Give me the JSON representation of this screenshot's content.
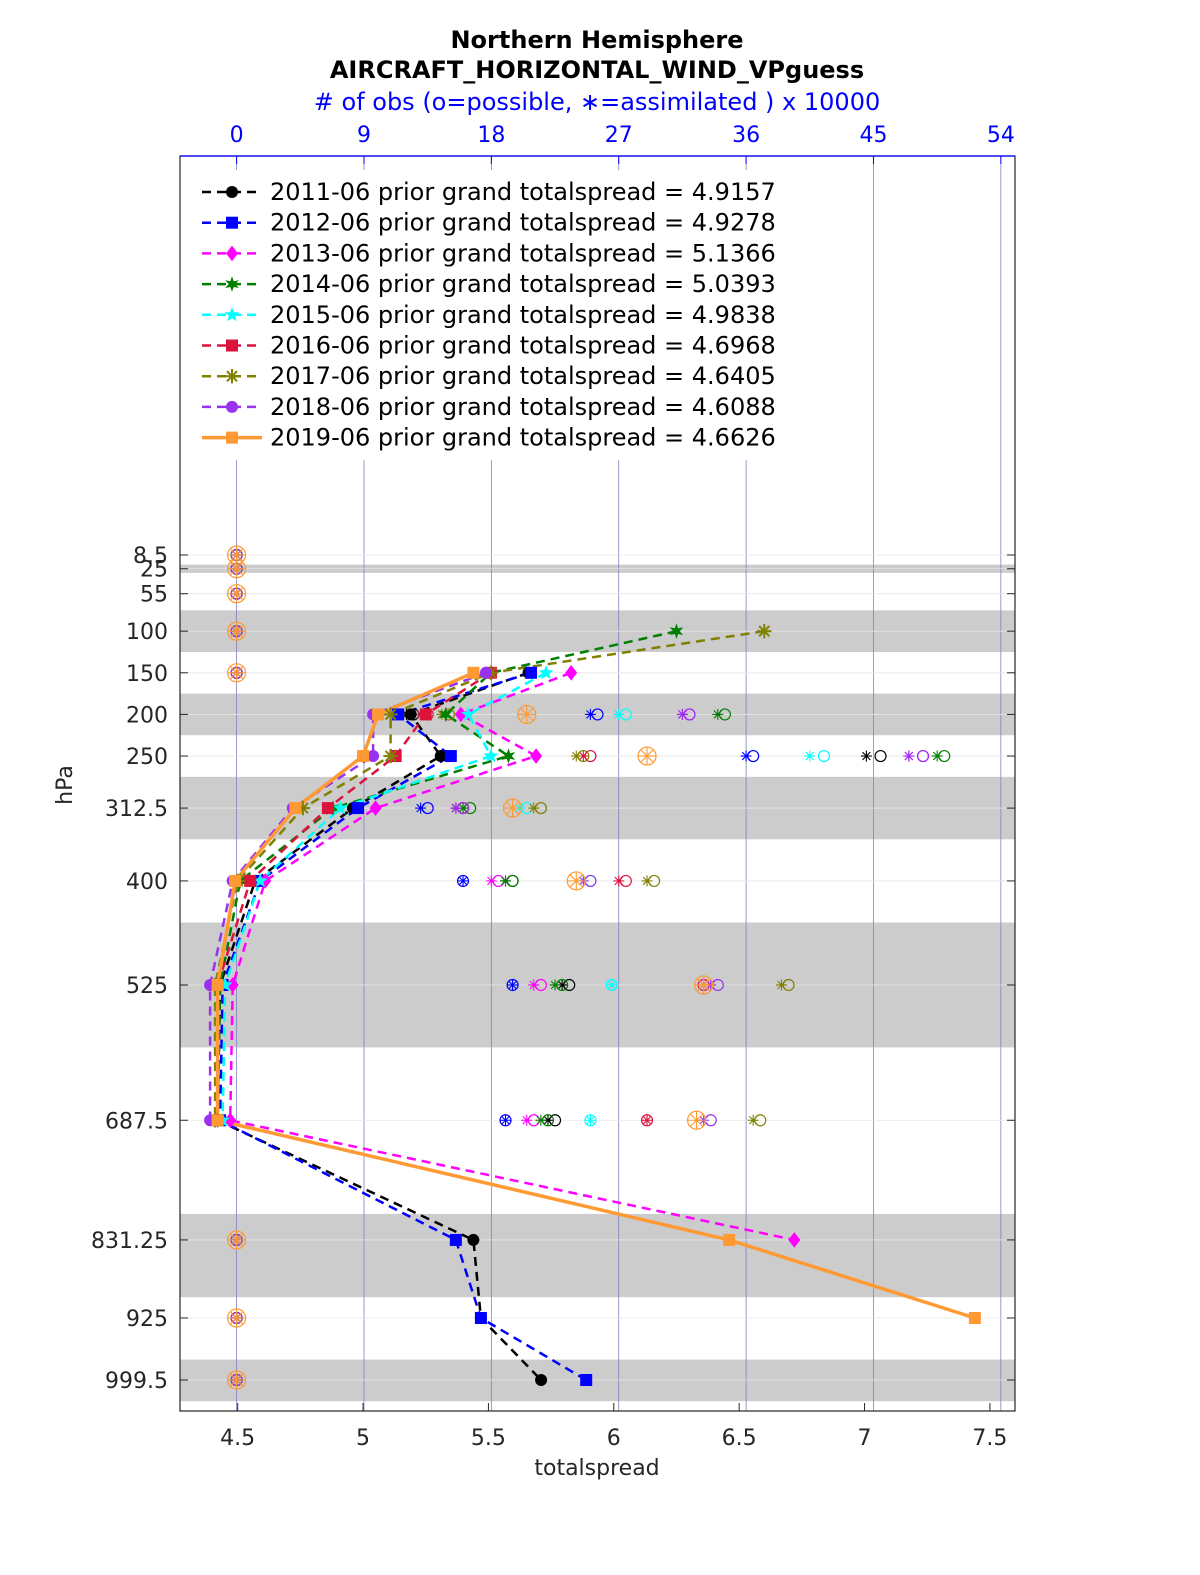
{
  "chart_data": {
    "type": "line",
    "title": "Northern Hemisphere",
    "subtitle": "AIRCRAFT_HORIZONTAL_WIND_VPguess",
    "top_axis_label": "# of obs (o=possible, ∗=assimilated ) x 10000",
    "xlabel": "totalspread",
    "ylabel": "hPa",
    "xlim": [
      4.27,
      7.6
    ],
    "x_ticks": [
      4.5,
      5,
      5.5,
      6,
      6.5,
      7,
      7.5
    ],
    "x_tick_labels": [
      "4.5",
      "5",
      "5.5",
      "6",
      "6.5",
      "7",
      "7.5"
    ],
    "top_lim": [
      -4,
      55
    ],
    "top_ticks": [
      0,
      9,
      18,
      27,
      36,
      45,
      54
    ],
    "top_tick_labels": [
      "0",
      "9",
      "18",
      "27",
      "36",
      "45",
      "54"
    ],
    "levels": [
      8.5,
      25,
      55,
      100,
      150,
      200,
      250,
      312.5,
      400,
      525,
      687.5,
      831.25,
      925,
      999.5
    ],
    "level_labels": [
      "8.5",
      "25",
      "55",
      "100",
      "150",
      "200",
      "250",
      "312.5",
      "400",
      "525",
      "687.5",
      "831.25",
      "925",
      "999.5"
    ],
    "shaded_bands": [
      [
        20,
        30
      ],
      [
        75,
        125
      ],
      [
        175,
        225
      ],
      [
        275,
        350
      ],
      [
        450,
        600
      ],
      [
        800,
        900
      ],
      [
        975,
        1025
      ]
    ],
    "series": [
      {
        "name": "2011-06",
        "legend": "2011-06 prior grand totalspread = 4.9157",
        "color": "#000000",
        "marker": "circle",
        "style": "dashed",
        "spread": [
          null,
          null,
          null,
          null,
          5.66,
          5.19,
          5.31,
          4.96,
          4.57,
          4.43,
          4.42,
          5.44,
          5.47,
          5.71
        ],
        "possible": [
          0,
          0,
          0,
          0,
          0,
          12.5,
          45.5,
          16,
          19.5,
          23.5,
          22.5,
          0,
          0,
          0
        ],
        "assimilated": [
          0,
          0,
          0,
          0,
          0,
          12,
          44.5,
          15.5,
          19,
          23,
          22,
          0,
          0,
          0
        ]
      },
      {
        "name": "2012-06",
        "legend": "2012-06 prior grand totalspread = 4.9278",
        "color": "#0000ff",
        "marker": "square",
        "style": "dashed",
        "spread": [
          null,
          null,
          null,
          null,
          5.67,
          5.14,
          5.35,
          4.98,
          4.59,
          4.44,
          4.43,
          5.37,
          5.47,
          5.89
        ],
        "possible": [
          0,
          0,
          0,
          0,
          0,
          25.5,
          36.5,
          13.5,
          16,
          19.5,
          19,
          0,
          0,
          0
        ],
        "assimilated": [
          0,
          0,
          0,
          0,
          0,
          25,
          36,
          13,
          16,
          19.5,
          19,
          0,
          0,
          0
        ]
      },
      {
        "name": "2013-06",
        "legend": "2013-06 prior grand totalspread = 5.1366",
        "color": "#ff00ff",
        "marker": "diamond",
        "style": "dashed",
        "spread": [
          null,
          null,
          null,
          null,
          5.83,
          5.39,
          5.69,
          5.05,
          4.61,
          4.48,
          4.47,
          6.72,
          null,
          null
        ],
        "possible": [
          0,
          0,
          0,
          0,
          0,
          32,
          48.5,
          16,
          18.5,
          21.5,
          21,
          0,
          0,
          0
        ],
        "assimilated": [
          0,
          0,
          0,
          0,
          0,
          31.5,
          47.5,
          15.5,
          18,
          21,
          20.5,
          0,
          0,
          0
        ]
      },
      {
        "name": "2014-06",
        "legend": "2014-06 prior grand totalspread = 5.0393",
        "color": "#008000",
        "marker": "hexagram",
        "style": "dashed",
        "spread": [
          null,
          null,
          6.25,
          5.51,
          5.33,
          5.58,
          4.88,
          4.51,
          4.43,
          4.42,
          null,
          null,
          null,
          null
        ],
        "levels_override": [
          8.5,
          25,
          100,
          150,
          200,
          250,
          312.5,
          400,
          525,
          687.5,
          831.25,
          925,
          999.5,
          999.5
        ],
        "possible": [
          0,
          0,
          0,
          0,
          0,
          34.5,
          50,
          16.5,
          19.5,
          23,
          22,
          0,
          0,
          0
        ],
        "assimilated": [
          0,
          0,
          0,
          0,
          0,
          34,
          49.5,
          16,
          19,
          22.5,
          21.5,
          0,
          0,
          0
        ]
      },
      {
        "name": "2015-06",
        "legend": "2015-06 prior grand totalspread = 4.9838",
        "color": "#00ffff",
        "marker": "pentagram",
        "style": "dashed",
        "spread": [
          null,
          null,
          null,
          null,
          5.73,
          5.42,
          5.51,
          4.91,
          4.59,
          4.45,
          4.44,
          null,
          null,
          null
        ],
        "possible": [
          0,
          0,
          0,
          0,
          0,
          27.5,
          41.5,
          20.5,
          25,
          26.5,
          25,
          0,
          0,
          0
        ],
        "assimilated": [
          0,
          0,
          0,
          0,
          0,
          27,
          40.5,
          20,
          24.5,
          26.5,
          25,
          0,
          0,
          0
        ]
      },
      {
        "name": "2016-06",
        "legend": "2016-06 prior grand totalspread = 4.6968",
        "color": "#dc143c",
        "marker": "square",
        "style": "dashed",
        "spread": [
          null,
          null,
          null,
          null,
          5.51,
          5.25,
          5.13,
          4.86,
          4.55,
          4.42,
          4.42,
          null,
          null,
          null
        ],
        "possible": [
          0,
          0,
          0,
          0,
          0,
          13.5,
          25,
          16,
          27.5,
          33,
          29,
          0,
          0,
          0
        ],
        "assimilated": [
          0,
          0,
          0,
          0,
          0,
          13,
          24.5,
          15.5,
          27,
          33,
          29,
          0,
          0,
          0
        ]
      },
      {
        "name": "2017-06",
        "legend": "2017-06 prior grand totalspread = 4.6405",
        "color": "#808000",
        "marker": "asterisk",
        "style": "dashed",
        "spread": [
          null,
          null,
          null,
          6.6,
          5.51,
          5.11,
          5.11,
          4.76,
          4.5,
          4.41,
          4.41,
          null,
          null,
          null
        ],
        "possible": [
          0,
          0,
          0,
          0,
          0,
          15,
          24.5,
          21.5,
          29.5,
          39,
          37,
          0,
          0,
          0
        ],
        "assimilated": [
          0,
          0,
          0,
          0,
          0,
          14.5,
          24,
          21,
          29,
          38.5,
          36.5,
          0,
          0,
          0
        ]
      },
      {
        "name": "2018-06",
        "legend": "2018-06 prior grand totalspread = 4.6088",
        "color": "#9932f0",
        "marker": "circle",
        "style": "dashed",
        "spread": [
          null,
          null,
          null,
          null,
          5.49,
          5.04,
          5.04,
          4.72,
          4.48,
          4.39,
          4.39,
          null,
          null,
          null
        ],
        "possible": [
          0,
          0,
          0,
          0,
          0,
          32,
          48.5,
          16,
          25,
          34,
          33.5,
          0,
          0,
          0
        ],
        "assimilated": [
          0,
          0,
          0,
          0,
          0,
          31.5,
          47.5,
          15.5,
          24.5,
          33.5,
          33,
          0,
          0,
          0
        ]
      },
      {
        "name": "2019-06",
        "legend": "2019-06 prior grand totalspread = 4.6626",
        "color": "#ff9933",
        "marker": "square",
        "style": "solid",
        "spread": [
          null,
          null,
          null,
          null,
          5.44,
          5.06,
          5.0,
          4.73,
          4.49,
          4.42,
          4.42,
          6.46,
          7.44,
          null
        ],
        "possible": [
          0,
          0,
          0,
          0,
          0,
          20.5,
          29,
          19.5,
          24,
          33,
          32.5,
          0,
          0,
          0
        ],
        "assimilated": [
          0,
          0,
          0,
          0,
          0,
          20.5,
          29,
          19.5,
          24,
          33,
          32.5,
          0,
          0,
          0
        ]
      }
    ]
  }
}
